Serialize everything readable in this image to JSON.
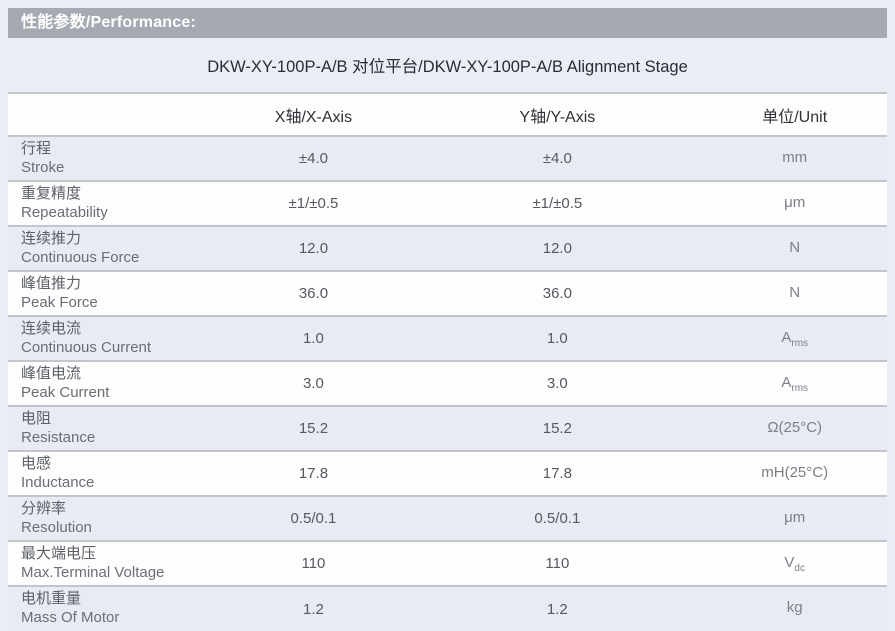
{
  "section": {
    "title": "性能参数/Performance:"
  },
  "table": {
    "title": "DKW-XY-100P-A/B 对位平台/DKW-XY-100P-A/B Alignment Stage",
    "columns": [
      "",
      "X轴/X-Axis",
      "Y轴/Y-Axis",
      "单位/Unit"
    ],
    "rows": [
      {
        "label_zh": "行程",
        "label_en": "Stroke",
        "x_value": "±4.0",
        "y_value": "±4.0",
        "unit": "mm"
      },
      {
        "label_zh": "重复精度",
        "label_en": "Repeatability",
        "x_value": "±1/±0.5",
        "y_value": "±1/±0.5",
        "unit": "μm"
      },
      {
        "label_zh": "连续推力",
        "label_en": "Continuous Force",
        "x_value": "12.0",
        "y_value": "12.0",
        "unit": "N"
      },
      {
        "label_zh": "峰值推力",
        "label_en": "Peak Force",
        "x_value": "36.0",
        "y_value": "36.0",
        "unit": "N"
      },
      {
        "label_zh": "连续电流",
        "label_en": "Continuous Current",
        "x_value": "1.0",
        "y_value": "1.0",
        "unit": "A",
        "unit_sub": "rms"
      },
      {
        "label_zh": "峰值电流",
        "label_en": "Peak Current",
        "x_value": "3.0",
        "y_value": "3.0",
        "unit": "A",
        "unit_sub": "rms"
      },
      {
        "label_zh": "电阻",
        "label_en": "Resistance",
        "x_value": "15.2",
        "y_value": "15.2",
        "unit": "Ω(25°C)"
      },
      {
        "label_zh": "电感",
        "label_en": "Inductance",
        "x_value": "17.8",
        "y_value": "17.8",
        "unit": "mH(25°C)"
      },
      {
        "label_zh": "分辨率",
        "label_en": "Resolution",
        "x_value": "0.5/0.1",
        "y_value": "0.5/0.1",
        "unit": "μm"
      },
      {
        "label_zh": "最大端电压",
        "label_en": "Max.Terminal Voltage",
        "x_value": "110",
        "y_value": "110",
        "unit": "V",
        "unit_sub": "dc"
      },
      {
        "label_zh": "电机重量",
        "label_en": "Mass Of Motor",
        "x_value": "1.2",
        "y_value": "1.2",
        "unit": "kg"
      }
    ]
  },
  "colors": {
    "page_background": "#eaedf4",
    "section_header_background": "#a5aab2",
    "section_header_text": "#ffffff",
    "row_shaded": "#e8ebf3",
    "row_white": "#fdfdfe",
    "row_border": "#c2c5cc",
    "title_text": "#2b2d33",
    "label_text": "#5c6067",
    "value_text": "#55585f",
    "unit_text": "#7b7f87"
  }
}
